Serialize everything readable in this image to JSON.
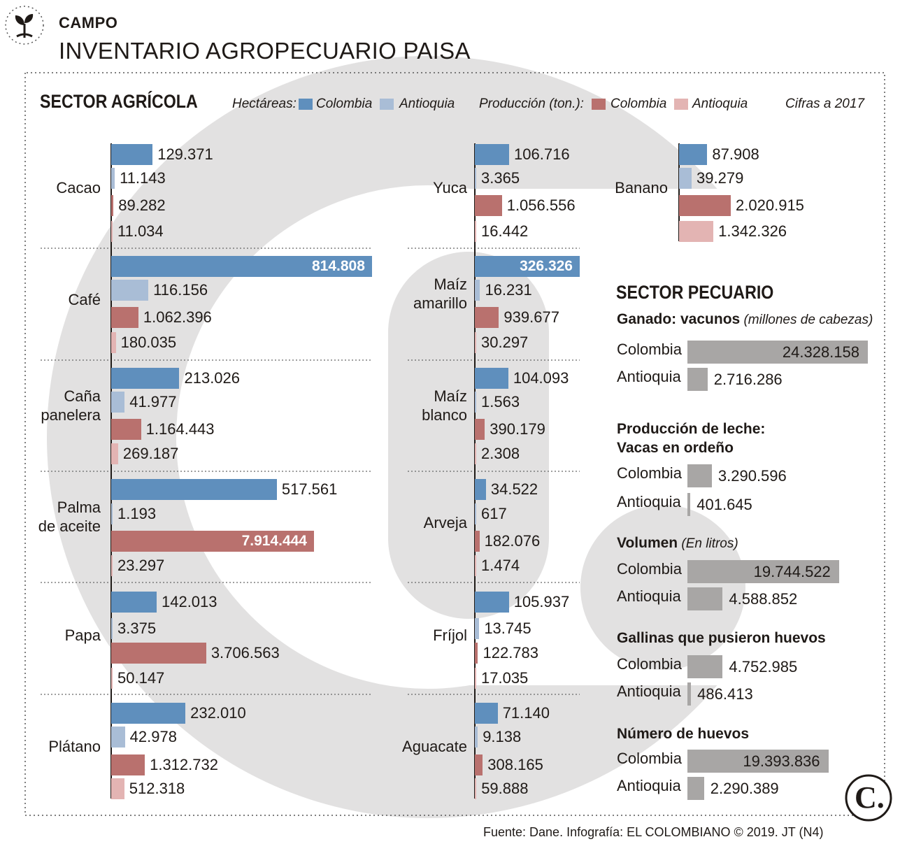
{
  "header": {
    "kicker": "CAMPO",
    "title": "INVENTARIO AGROPECUARIO PAISA",
    "icon": "plant-sprout-icon"
  },
  "legend": {
    "hectares_label": "Hectáreas:",
    "production_label": "Producción (ton.):",
    "colombia": "Colombia",
    "antioquia": "Antioquia",
    "note": "Cifras a 2017"
  },
  "colors": {
    "hect_colombia": "#5f8fbd",
    "hect_antioquia": "#a9bdd6",
    "prod_colombia": "#b9716e",
    "prod_antioquia": "#e3b4b3",
    "pecuario_bar": "#a8a6a5"
  },
  "chart_data": [
    {
      "type": "bar",
      "title": "SECTOR AGRÍCOLA",
      "orientation": "horizontal",
      "series": [
        {
          "name": "Hectáreas: Colombia"
        },
        {
          "name": "Hectáreas: Antioquia"
        },
        {
          "name": "Producción (ton.): Colombia"
        },
        {
          "name": "Producción (ton.): Antioquia"
        }
      ],
      "crops": [
        {
          "name": "Cacao",
          "values": [
            129371,
            11143,
            89282,
            11034
          ],
          "labels": [
            "129.371",
            "11.143",
            "89.282",
            "11.034"
          ]
        },
        {
          "name": "Café",
          "values": [
            814808,
            116156,
            1062396,
            180035
          ],
          "labels": [
            "814.808",
            "116.156",
            "1.062.396",
            "180.035"
          ]
        },
        {
          "name": "Caña panelera",
          "values": [
            213026,
            41977,
            1164443,
            269187
          ],
          "labels": [
            "213.026",
            "41.977",
            "1.164.443",
            "269.187"
          ]
        },
        {
          "name": "Palma de aceite",
          "values": [
            517561,
            1193,
            7914444,
            23297
          ],
          "labels": [
            "517.561",
            "1.193",
            "7.914.444",
            "23.297"
          ]
        },
        {
          "name": "Papa",
          "values": [
            142013,
            3375,
            3706563,
            50147
          ],
          "labels": [
            "142.013",
            "3.375",
            "3.706.563",
            "50.147"
          ]
        },
        {
          "name": "Plátano",
          "values": [
            232010,
            42978,
            1312732,
            512318
          ],
          "labels": [
            "232.010",
            "42.978",
            "1.312.732",
            "512.318"
          ]
        },
        {
          "name": "Yuca",
          "values": [
            106716,
            3365,
            1056556,
            16442
          ],
          "labels": [
            "106.716",
            "3.365",
            "1.056.556",
            "16.442"
          ]
        },
        {
          "name": "Maíz amarillo",
          "values": [
            326326,
            16231,
            939677,
            30297
          ],
          "labels": [
            "326.326",
            "16.231",
            "939.677",
            "30.297"
          ]
        },
        {
          "name": "Maíz blanco",
          "values": [
            104093,
            1563,
            390179,
            2308
          ],
          "labels": [
            "104.093",
            "1.563",
            "390.179",
            "2.308"
          ]
        },
        {
          "name": "Arveja",
          "values": [
            34522,
            617,
            182076,
            1474
          ],
          "labels": [
            "34.522",
            "617",
            "182.076",
            "1.474"
          ]
        },
        {
          "name": "Fríjol",
          "values": [
            105937,
            13745,
            122783,
            17035
          ],
          "labels": [
            "105.937",
            "13.745",
            "122.783",
            "17.035"
          ]
        },
        {
          "name": "Aguacate",
          "values": [
            71140,
            9138,
            308165,
            59888
          ],
          "labels": [
            "71.140",
            "9.138",
            "308.165",
            "59.888"
          ]
        },
        {
          "name": "Banano",
          "values": [
            87908,
            39279,
            2020915,
            1342326
          ],
          "labels": [
            "87.908",
            "39.279",
            "2.020.915",
            "1.342.326"
          ]
        }
      ]
    },
    {
      "type": "bar",
      "title": "SECTOR PECUARIO",
      "orientation": "horizontal",
      "groups": [
        {
          "title": "Ganado: vacunos",
          "subtitle": "(millones de cabezas)",
          "categories": [
            "Colombia",
            "Antioquia"
          ],
          "values": [
            24328158,
            2716286
          ],
          "labels": [
            "24.328.158",
            "2.716.286"
          ]
        },
        {
          "title": "Producción de leche:",
          "title2": "Vacas en ordeño",
          "categories": [
            "Colombia",
            "Antioquia"
          ],
          "values": [
            3290596,
            401645
          ],
          "labels": [
            "3.290.596",
            "401.645"
          ]
        },
        {
          "title": "Volumen",
          "subtitle": "(En litros)",
          "categories": [
            "Colombia",
            "Antioquia"
          ],
          "values": [
            19744522,
            4588852
          ],
          "labels": [
            "19.744.522",
            "4.588.852"
          ]
        },
        {
          "title": "Gallinas que pusieron huevos",
          "categories": [
            "Colombia",
            "Antioquia"
          ],
          "values": [
            4752985,
            486413
          ],
          "labels": [
            "4.752.985",
            "486.413"
          ]
        },
        {
          "title": "Número de huevos",
          "categories": [
            "Colombia",
            "Antioquia"
          ],
          "values": [
            19393836,
            2290389
          ],
          "labels": [
            "19.393.836",
            "2.290.389"
          ]
        }
      ]
    }
  ],
  "footer": {
    "source": "Fuente: Dane. Infografía: EL COLOMBIANO © 2019. JT (N4)",
    "logo_letter": "C."
  }
}
